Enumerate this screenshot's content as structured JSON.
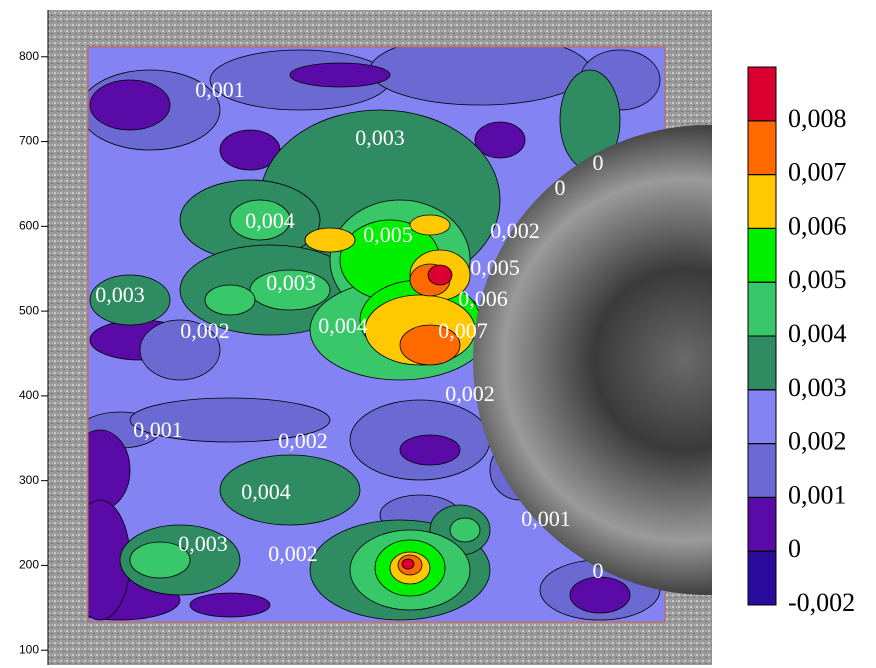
{
  "chart_data": {
    "type": "contour",
    "ylim": [
      79,
      867
    ],
    "yticks": [
      100,
      200,
      300,
      400,
      500,
      600,
      700,
      800
    ],
    "levels": [
      {
        "value": -0.002,
        "label": "-0,002"
      },
      0,
      {
        "value": 0.001,
        "label": "0,001"
      },
      {
        "value": 0.002,
        "label": "0,002"
      },
      {
        "value": 0.003,
        "label": "0,003"
      },
      {
        "value": 0.004,
        "label": "0,004"
      },
      {
        "value": 0.005,
        "label": "0,005"
      },
      {
        "value": 0.006,
        "label": "0,006"
      },
      {
        "value": 0.007,
        "label": "0,007"
      },
      {
        "value": 0.008,
        "label": "0,008"
      }
    ],
    "colors": [
      "#2a0c9c",
      "#5a0aa6",
      "#6a6ad2",
      "#8383f4",
      "#2e8b62",
      "#38c86a",
      "#00f000",
      "#ffc800",
      "#ff6a00",
      "#dc0030"
    ],
    "contour_labels": [
      {
        "value": 0.001,
        "label": "0,001"
      },
      {
        "value": 0.003,
        "label": "0,003"
      },
      {
        "value": 0.004,
        "label": "0,004"
      },
      {
        "value": 0.005,
        "label": "0,005"
      },
      {
        "value": 0.002,
        "label": "0,002"
      },
      {
        "value": 0.005,
        "label": "0,005"
      },
      {
        "value": 0.003,
        "label": "0,003"
      },
      {
        "value": 0.003,
        "label": "0,003"
      },
      {
        "value": 0.006,
        "label": "0,006"
      },
      {
        "value": 0.002,
        "label": "0,002"
      },
      {
        "value": 0.004,
        "label": "0,004"
      },
      {
        "value": 0.007,
        "label": "0,007"
      },
      {
        "value": 0.002,
        "label": "0,002"
      },
      {
        "value": 0.001,
        "label": "0,001"
      },
      {
        "value": 0.002,
        "label": "0,002"
      },
      {
        "value": 0.004,
        "label": "0,004"
      },
      {
        "value": 0.001,
        "label": "0,001"
      },
      {
        "value": 0.003,
        "label": "0,003"
      },
      {
        "value": 0.002,
        "label": "0,002"
      },
      0,
      0,
      0
    ]
  }
}
